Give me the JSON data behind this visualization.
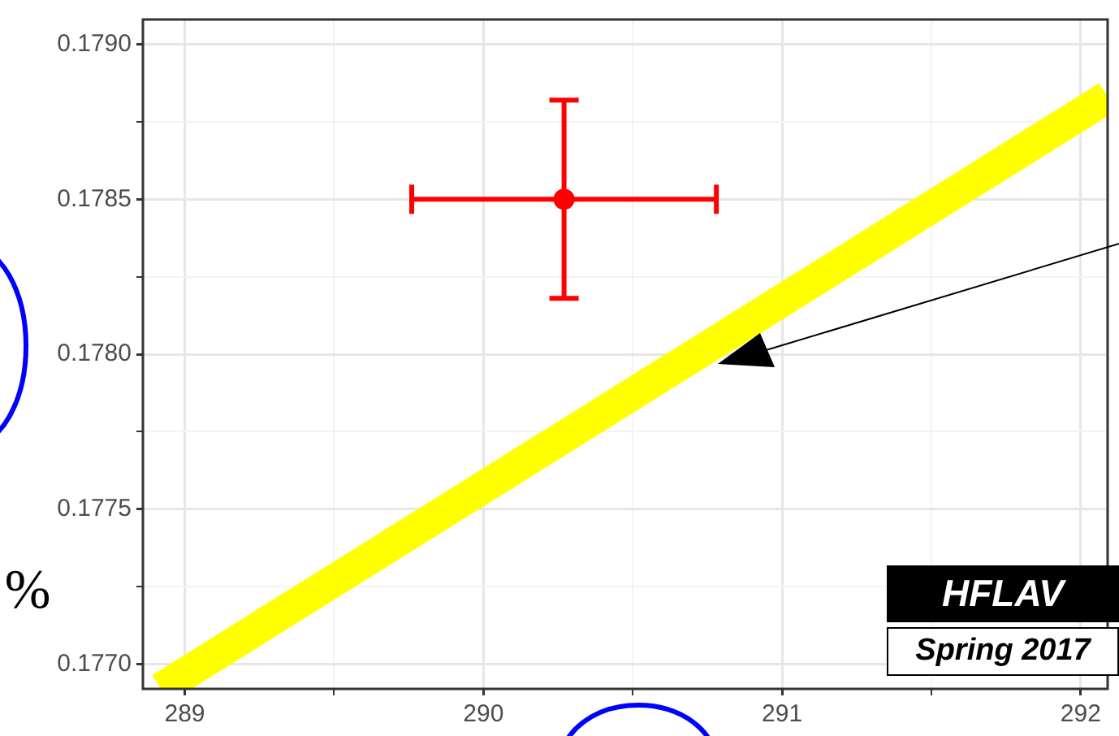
{
  "chart_data": {
    "type": "scatter",
    "ylabel": "%",
    "annotations": [
      "HFLAV",
      "Spring 2017"
    ],
    "xlim": [
      288.86,
      292.09
    ],
    "ylim": [
      0.17692,
      0.17908
    ],
    "xticks": [
      289,
      {
        "value": 289.5,
        "label": null
      },
      290,
      {
        "value": 290.5,
        "label": null
      },
      291,
      {
        "value": 291.5,
        "label": null
      },
      292
    ],
    "yticks": [
      {
        "value": 0.177,
        "label": "0.1770"
      },
      {
        "value": 0.17725,
        "label": null
      },
      0.1775,
      {
        "value": 0.17775,
        "label": null
      },
      {
        "value": 0.178,
        "label": "0.1780"
      },
      {
        "value": 0.17825,
        "label": null
      },
      0.1785,
      {
        "value": 0.17875,
        "label": null
      },
      {
        "value": 0.179,
        "label": "0.1790"
      }
    ],
    "grid": true,
    "legend": false,
    "series": [
      {
        "type": "line",
        "color": "#ffff00",
        "x": [
          288.92,
          292.09
        ],
        "values": [
          0.17692,
          0.17883
        ]
      },
      {
        "color": "#ff0000",
        "marker": "circle",
        "x": [
          290.27
        ],
        "values": [
          0.1785
        ],
        "errors": [
          0.00032
        ],
        "xerrors": [
          0.51
        ]
      }
    ]
  }
}
